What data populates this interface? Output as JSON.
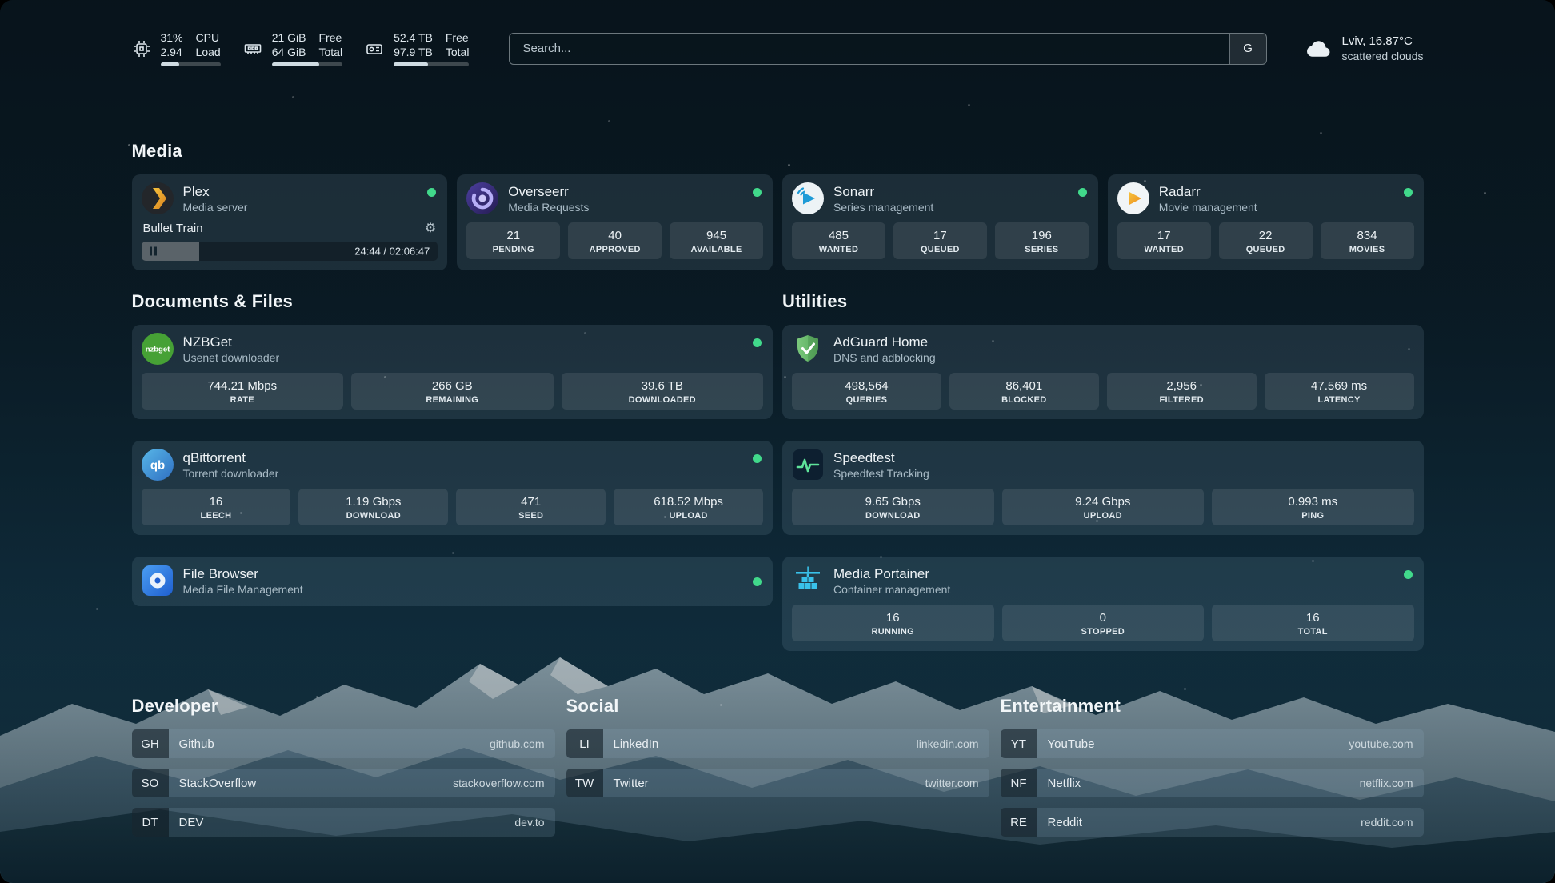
{
  "header": {
    "cpu": {
      "value": "31%",
      "value2": "2.94",
      "label": "CPU",
      "label2": "Load",
      "percent": 31
    },
    "memory": {
      "value": "21 GiB",
      "value2": "64 GiB",
      "label": "Free",
      "label2": "Total",
      "percent": 67
    },
    "disk": {
      "value": "52.4 TB",
      "value2": "97.9 TB",
      "label": "Free",
      "label2": "Total",
      "percent": 46
    },
    "search": {
      "placeholder": "Search...",
      "button_label": "G"
    },
    "weather": {
      "location": "Lviv, 16.87°C",
      "condition": "scattered clouds"
    }
  },
  "colors": {
    "status_ok": "#41d98b",
    "accent_plex": "#e5a00d"
  },
  "icons": {
    "settings_glyph": "⚙"
  },
  "sections": {
    "media": {
      "title": "Media",
      "plex": {
        "name": "Plex",
        "subtitle": "Media server",
        "now_playing": "Bullet Train",
        "time": "24:44 / 02:06:47",
        "progress": 19.5
      },
      "overseerr": {
        "name": "Overseerr",
        "subtitle": "Media Requests",
        "stats": [
          {
            "value": "21",
            "label": "PENDING"
          },
          {
            "value": "40",
            "label": "APPROVED"
          },
          {
            "value": "945",
            "label": "AVAILABLE"
          }
        ]
      },
      "sonarr": {
        "name": "Sonarr",
        "subtitle": "Series management",
        "stats": [
          {
            "value": "485",
            "label": "WANTED"
          },
          {
            "value": "17",
            "label": "QUEUED"
          },
          {
            "value": "196",
            "label": "SERIES"
          }
        ]
      },
      "radarr": {
        "name": "Radarr",
        "subtitle": "Movie management",
        "stats": [
          {
            "value": "17",
            "label": "WANTED"
          },
          {
            "value": "22",
            "label": "QUEUED"
          },
          {
            "value": "834",
            "label": "MOVIES"
          }
        ]
      }
    },
    "documents": {
      "title": "Documents & Files",
      "nzbget": {
        "name": "NZBGet",
        "subtitle": "Usenet downloader",
        "stats": [
          {
            "value": "744.21 Mbps",
            "label": "RATE"
          },
          {
            "value": "266 GB",
            "label": "REMAINING"
          },
          {
            "value": "39.6 TB",
            "label": "DOWNLOADED"
          }
        ]
      },
      "qbittorrent": {
        "name": "qBittorrent",
        "subtitle": "Torrent downloader",
        "stats": [
          {
            "value": "16",
            "label": "LEECH"
          },
          {
            "value": "1.19 Gbps",
            "label": "DOWNLOAD"
          },
          {
            "value": "471",
            "label": "SEED"
          },
          {
            "value": "618.52 Mbps",
            "label": "UPLOAD"
          }
        ]
      },
      "filebrowser": {
        "name": "File Browser",
        "subtitle": "Media File Management"
      }
    },
    "utilities": {
      "title": "Utilities",
      "adguard": {
        "name": "AdGuard Home",
        "subtitle": "DNS and adblocking",
        "stats": [
          {
            "value": "498,564",
            "label": "QUERIES"
          },
          {
            "value": "86,401",
            "label": "BLOCKED"
          },
          {
            "value": "2,956",
            "label": "FILTERED"
          },
          {
            "value": "47.569 ms",
            "label": "LATENCY"
          }
        ]
      },
      "speedtest": {
        "name": "Speedtest",
        "subtitle": "Speedtest Tracking",
        "stats": [
          {
            "value": "9.65 Gbps",
            "label": "DOWNLOAD"
          },
          {
            "value": "9.24 Gbps",
            "label": "UPLOAD"
          },
          {
            "value": "0.993 ms",
            "label": "PING"
          }
        ]
      },
      "portainer": {
        "name": "Media Portainer",
        "subtitle": "Container management",
        "stats": [
          {
            "value": "16",
            "label": "RUNNING"
          },
          {
            "value": "0",
            "label": "STOPPED"
          },
          {
            "value": "16",
            "label": "TOTAL"
          }
        ]
      }
    }
  },
  "bookmarks": {
    "developer": {
      "title": "Developer",
      "items": [
        {
          "abbr": "GH",
          "name": "Github",
          "url": "github.com"
        },
        {
          "abbr": "SO",
          "name": "StackOverflow",
          "url": "stackoverflow.com"
        },
        {
          "abbr": "DT",
          "name": "DEV",
          "url": "dev.to"
        }
      ]
    },
    "social": {
      "title": "Social",
      "items": [
        {
          "abbr": "LI",
          "name": "LinkedIn",
          "url": "linkedin.com"
        },
        {
          "abbr": "TW",
          "name": "Twitter",
          "url": "twitter.com"
        }
      ]
    },
    "entertainment": {
      "title": "Entertainment",
      "items": [
        {
          "abbr": "YT",
          "name": "YouTube",
          "url": "youtube.com"
        },
        {
          "abbr": "NF",
          "name": "Netflix",
          "url": "netflix.com"
        },
        {
          "abbr": "RE",
          "name": "Reddit",
          "url": "reddit.com"
        }
      ]
    }
  }
}
